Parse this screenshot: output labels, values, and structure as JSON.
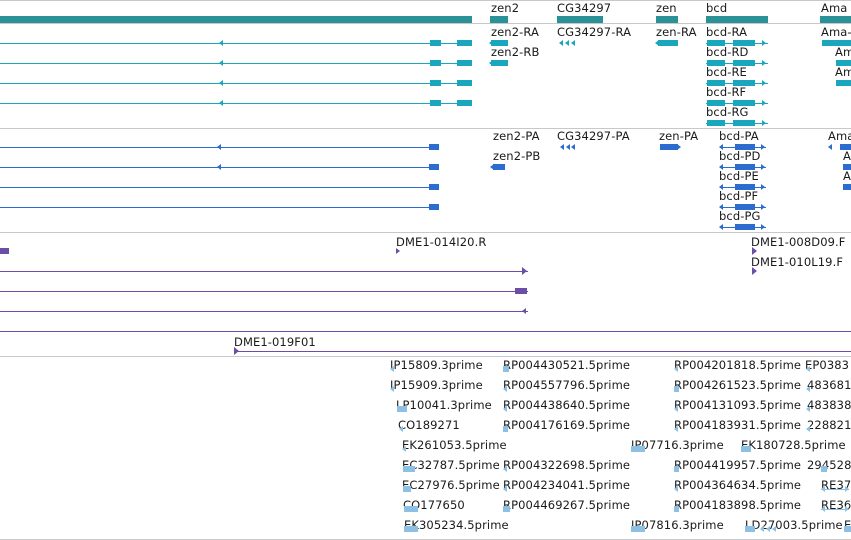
{
  "colors": {
    "teal": "#1aa6bd",
    "teal_dark": "#2a9196",
    "blue": "#2d6ccf",
    "purple": "#6b4fa6",
    "lightblue": "#8ec0e3",
    "separator": "#c8c8c8"
  },
  "gene_track": {
    "genes": [
      "zen2",
      "CG34297",
      "zen",
      "bcd",
      "Ama"
    ]
  },
  "transcript_track": {
    "labels": [
      "zen2-RA",
      "zen2-RB",
      "CG34297-RA",
      "zen-RA",
      "bcd-RA",
      "bcd-RD",
      "bcd-RE",
      "bcd-RF",
      "bcd-RG",
      "Ama-",
      "Am",
      "Am"
    ]
  },
  "cds_track": {
    "labels": [
      "zen2-PA",
      "zen2-PB",
      "CG34297-PA",
      "zen-PA",
      "bcd-PA",
      "bcd-PD",
      "bcd-PE",
      "bcd-PF",
      "bcd-PG",
      "Ama",
      "A",
      "A"
    ]
  },
  "clone_track": {
    "labels": [
      "DME1-014I20.R",
      "DME1-008D09.F",
      "DME1-010L19.F"
    ]
  },
  "clone2_track": {
    "labels": [
      "DME1-019F01"
    ]
  },
  "est_track": {
    "labels": [
      "IP15809.3prime",
      "IP15909.3prime",
      "LP10041.3prime",
      "CO189271",
      "EK261053.5prime",
      "EC32787.5prime",
      "EC27976.5prime",
      "CO177650",
      "EK305234.5prime",
      "RP004430521.5prime",
      "RP004557796.5prime",
      "RP004438640.5prime",
      "RP004176169.5prime",
      "RP004322698.5prime",
      "RP004234041.5prime",
      "RP004469267.5prime",
      "IP07716.3prime",
      "IP07816.3prime",
      "RP004201818.5prime",
      "RP004261523.5prime",
      "RP004131093.5prime",
      "RP004183931.5prime",
      "EK180728.5prime",
      "RP004419957.5prime",
      "RP004364634.5prime",
      "RP004183898.5prime",
      "LD27003.5prime",
      "EP0383",
      "483681",
      "483838",
      "228821",
      "294528",
      "RE37",
      "RE36",
      "E"
    ]
  }
}
